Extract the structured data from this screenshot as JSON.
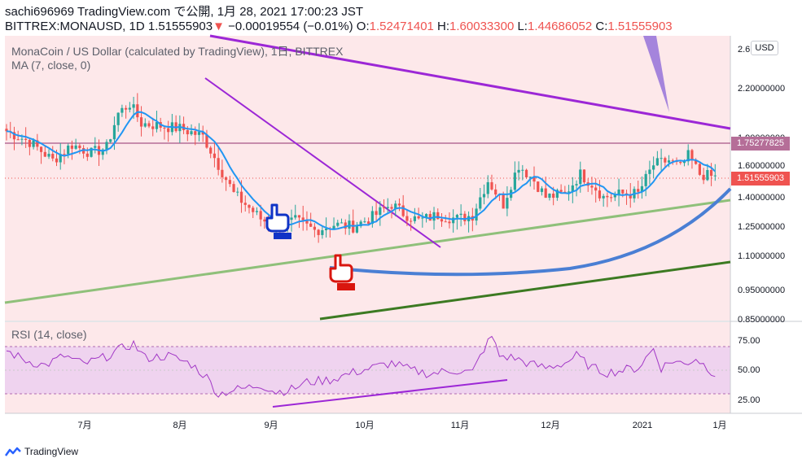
{
  "header": {
    "line1": "sachi696969 TradingView.com で公開, 1月 28, 2021 17:00:23 JST",
    "symbol_price": "BITTREX:MONAUSD, 1D 1.51555903",
    "arrow": "▼",
    "change": "−0.00019554 (−0.01%)",
    "o_label": "O:",
    "o_value": "1.52471401",
    "h_label": "H:",
    "h_value": "1.60033300",
    "l_label": "L:",
    "l_value": "1.44686052",
    "c_label": "C:",
    "c_value": "1.51555903"
  },
  "legend": {
    "main": "MonaCoin / US Dollar (calculated by TradingView), 1日, BITTREX",
    "ma": "MA (7, close, 0)",
    "rsi": "RSI (14, close)"
  },
  "currency_button": "USD",
  "price_tags": {
    "ma": "1.75277825",
    "last": "1.51555903"
  },
  "brand": "TradingView",
  "colors": {
    "pane_bg": "#fde8ea",
    "rsi_band": "#efd3ef",
    "up": "#26a69a",
    "down": "#ef5350",
    "ma": "#2196f3",
    "trend_purple": "#9c27d6",
    "trend_green": "#8fc07a",
    "trend_darkgreen": "#3c7a22",
    "curve_blue": "#4a7fd4",
    "rsi_line": "#a238c6",
    "hline": "#b56e98"
  },
  "chart_data": {
    "type": "candlestick",
    "symbol": "BITTREX:MONAUSD",
    "interval": "1D",
    "last_ohlc": {
      "open": 1.52471401,
      "high": 1.600333,
      "low": 1.44686052,
      "close": 1.51555903
    },
    "y_axis_ticks": [
      "2.6",
      "2.20000000",
      "1.90000000",
      "1.60000000",
      "1.40000000",
      "1.25000000",
      "1.10000000",
      "0.95000000",
      "0.85000000"
    ],
    "y_scale": "log",
    "x_axis_ticks": [
      "7月",
      "8月",
      "9月",
      "10月",
      "11月",
      "12月",
      "2021",
      "1月"
    ],
    "horizontal_level": 1.75277825,
    "rsi_ticks": [
      "75.00",
      "50.00",
      "25.00"
    ],
    "rsi_band": [
      30,
      70
    ],
    "price_keypoints": [
      [
        0,
        1.84
      ],
      [
        6,
        1.76
      ],
      [
        12,
        1.63
      ],
      [
        17,
        1.74
      ],
      [
        22,
        1.68
      ],
      [
        26,
        1.72
      ],
      [
        29,
        1.98
      ],
      [
        32,
        2.06
      ],
      [
        35,
        1.9
      ],
      [
        40,
        1.88
      ],
      [
        45,
        1.86
      ],
      [
        51,
        1.8
      ],
      [
        55,
        1.6
      ],
      [
        59,
        1.42
      ],
      [
        62,
        1.36
      ],
      [
        66,
        1.28
      ],
      [
        70,
        1.24
      ],
      [
        75,
        1.27
      ],
      [
        80,
        1.22
      ],
      [
        85,
        1.25
      ],
      [
        90,
        1.24
      ],
      [
        95,
        1.29
      ],
      [
        100,
        1.36
      ],
      [
        103,
        1.31
      ],
      [
        107,
        1.27
      ],
      [
        112,
        1.3
      ],
      [
        117,
        1.28
      ],
      [
        121,
        1.3
      ],
      [
        125,
        1.5
      ],
      [
        129,
        1.36
      ],
      [
        133,
        1.6
      ],
      [
        137,
        1.5
      ],
      [
        140,
        1.4
      ],
      [
        145,
        1.42
      ],
      [
        149,
        1.54
      ],
      [
        152,
        1.48
      ],
      [
        155,
        1.4
      ],
      [
        160,
        1.42
      ],
      [
        164,
        1.42
      ],
      [
        168,
        1.6
      ],
      [
        172,
        1.63
      ],
      [
        175,
        1.58
      ],
      [
        177,
        1.66
      ],
      [
        180,
        1.54
      ],
      [
        184,
        1.52
      ]
    ],
    "rsi_keypoints": [
      [
        0,
        66
      ],
      [
        5,
        58
      ],
      [
        10,
        54
      ],
      [
        15,
        62
      ],
      [
        20,
        55
      ],
      [
        25,
        60
      ],
      [
        30,
        68
      ],
      [
        33,
        72
      ],
      [
        36,
        60
      ],
      [
        42,
        62
      ],
      [
        48,
        55
      ],
      [
        52,
        44
      ],
      [
        55,
        30
      ],
      [
        58,
        33
      ],
      [
        62,
        35
      ],
      [
        66,
        38
      ],
      [
        70,
        32
      ],
      [
        74,
        34
      ],
      [
        78,
        40
      ],
      [
        84,
        42
      ],
      [
        90,
        48
      ],
      [
        95,
        52
      ],
      [
        100,
        56
      ],
      [
        105,
        50
      ],
      [
        110,
        47
      ],
      [
        116,
        50
      ],
      [
        121,
        48
      ],
      [
        124,
        68
      ],
      [
        126,
        78
      ],
      [
        128,
        62
      ],
      [
        132,
        60
      ],
      [
        136,
        55
      ],
      [
        140,
        52
      ],
      [
        145,
        56
      ],
      [
        148,
        62
      ],
      [
        152,
        52
      ],
      [
        156,
        48
      ],
      [
        160,
        50
      ],
      [
        164,
        52
      ],
      [
        168,
        68
      ],
      [
        170,
        52
      ],
      [
        173,
        58
      ],
      [
        176,
        55
      ],
      [
        179,
        60
      ],
      [
        182,
        52
      ],
      [
        184,
        47
      ]
    ]
  }
}
